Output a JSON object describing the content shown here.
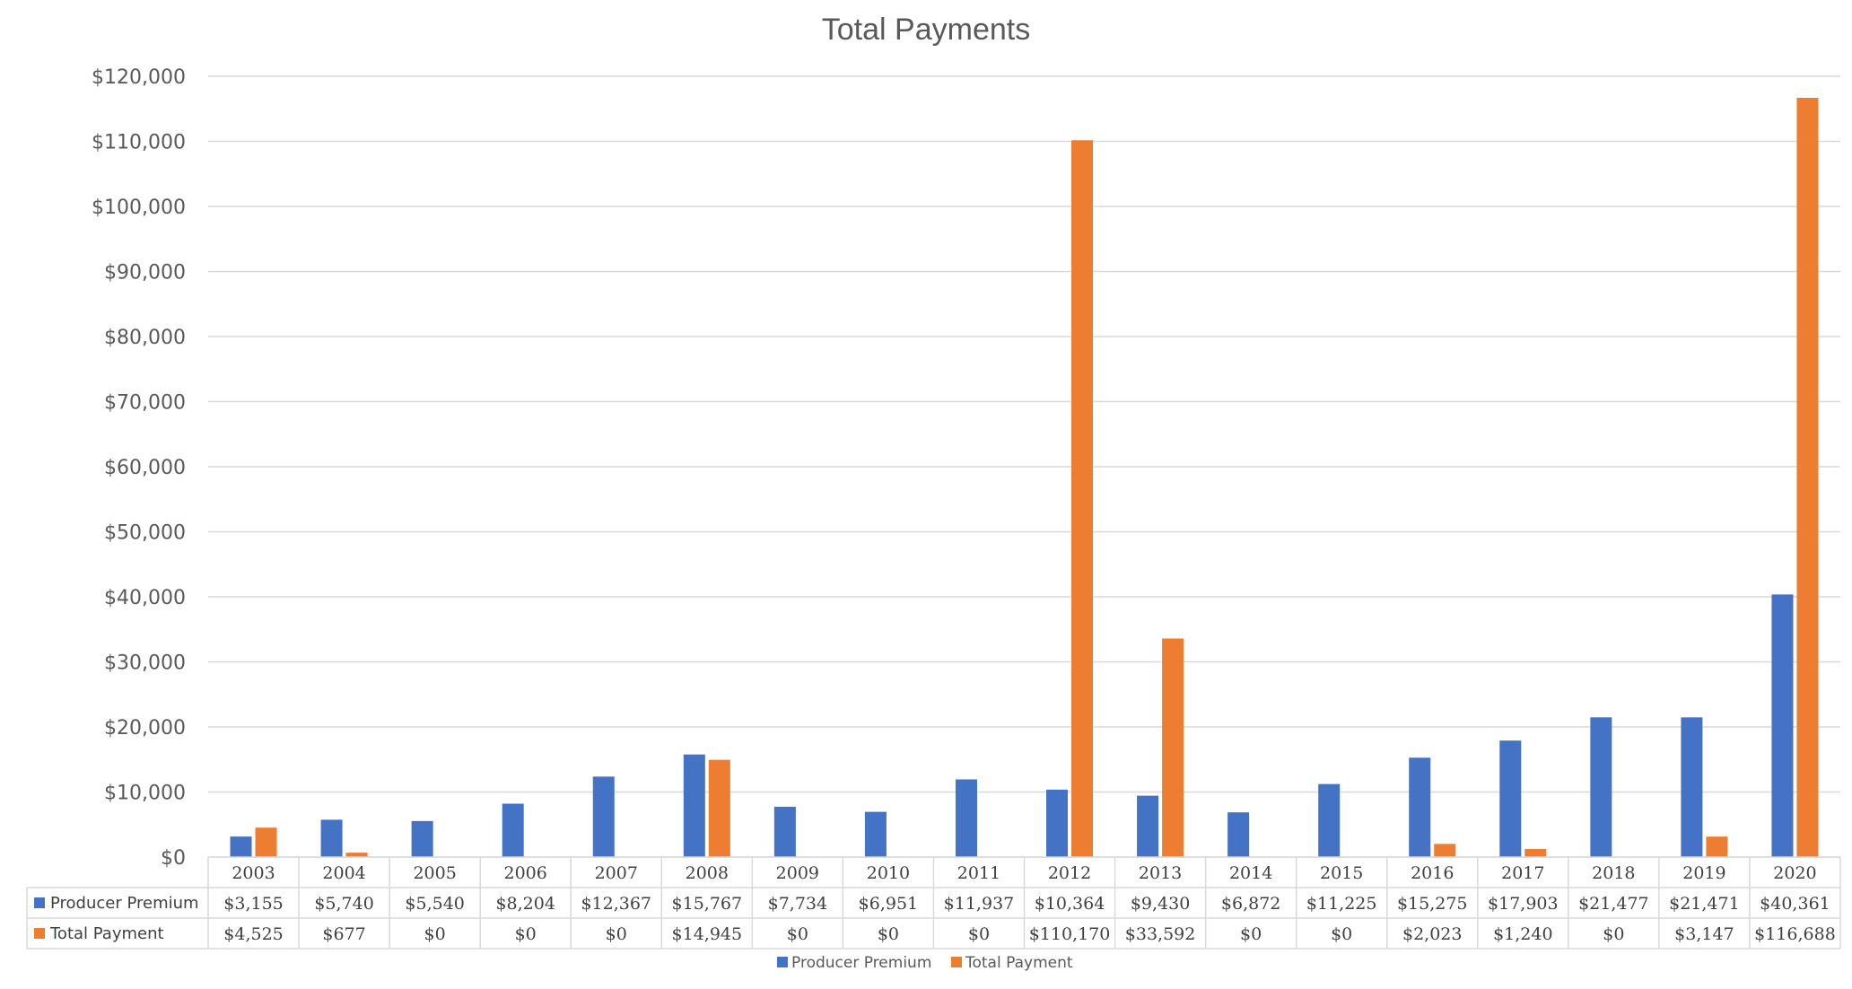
{
  "chart_data": {
    "type": "bar",
    "title": "Total Payments",
    "categories": [
      "2003",
      "2004",
      "2005",
      "2006",
      "2007",
      "2008",
      "2009",
      "2010",
      "2011",
      "2012",
      "2013",
      "2014",
      "2015",
      "2016",
      "2017",
      "2018",
      "2019",
      "2020"
    ],
    "series": [
      {
        "name": "Producer Premium",
        "color": "#4472C4",
        "values": [
          3155,
          5740,
          5540,
          8204,
          12367,
          15767,
          7734,
          6951,
          11937,
          10364,
          9430,
          6872,
          11225,
          15275,
          17903,
          21477,
          21471,
          40361
        ],
        "labels": [
          "$3,155",
          "$5,740",
          "$5,540",
          "$8,204",
          "$12,367",
          "$15,767",
          "$7,734",
          "$6,951",
          "$11,937",
          "$10,364",
          "$9,430",
          "$6,872",
          "$11,225",
          "$15,275",
          "$17,903",
          "$21,477",
          "$21,471",
          "$40,361"
        ]
      },
      {
        "name": "Total Payment",
        "color": "#ED7D31",
        "values": [
          4525,
          677,
          0,
          0,
          0,
          14945,
          0,
          0,
          0,
          110170,
          33592,
          0,
          0,
          2023,
          1240,
          0,
          3147,
          116688
        ],
        "labels": [
          "$4,525",
          "$677",
          "$0",
          "$0",
          "$0",
          "$14,945",
          "$0",
          "$0",
          "$0",
          "$110,170",
          "$33,592",
          "$0",
          "$0",
          "$2,023",
          "$1,240",
          "$0",
          "$3,147",
          "$116,688"
        ]
      }
    ],
    "ylim": [
      0,
      120000
    ],
    "yticks": [
      0,
      10000,
      20000,
      30000,
      40000,
      50000,
      60000,
      70000,
      80000,
      90000,
      100000,
      110000,
      120000
    ],
    "ytick_labels": [
      "$0",
      "$10,000",
      "$20,000",
      "$30,000",
      "$40,000",
      "$50,000",
      "$60,000",
      "$70,000",
      "$80,000",
      "$90,000",
      "$100,000",
      "$110,000",
      "$120,000"
    ],
    "xlabel": "",
    "ylabel": "",
    "grid": true,
    "legend": "bottom",
    "data_table": true
  }
}
